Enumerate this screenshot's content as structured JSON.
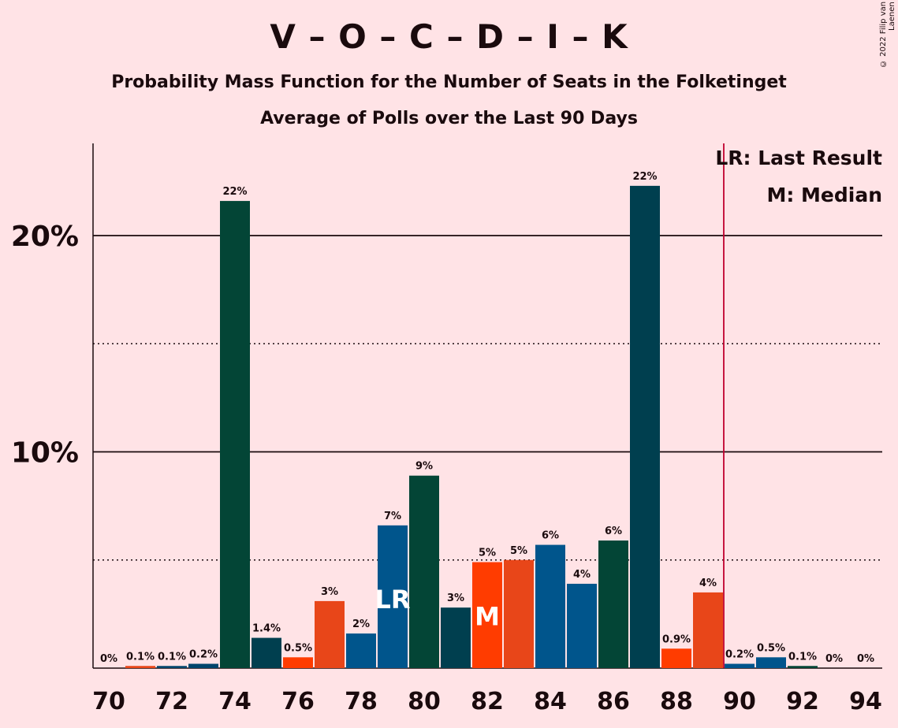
{
  "title": "V – O – C – D – I – K",
  "subtitle": "Probability Mass Function for the Number of Seats in the Folketinget",
  "subtitle2": "Average of Polls over the Last 90 Days",
  "copyright": "© 2022 Filip van Laenen",
  "legend": {
    "lr": "LR: Last Result",
    "m": "M: Median"
  },
  "chart_data": {
    "type": "bar",
    "categories": [
      70,
      71,
      72,
      73,
      74,
      75,
      76,
      77,
      78,
      79,
      80,
      81,
      82,
      83,
      84,
      85,
      86,
      87,
      88,
      89,
      90,
      91,
      92,
      93,
      94
    ],
    "values": [
      0,
      0.1,
      0.1,
      0.2,
      21.6,
      1.4,
      0.5,
      3.1,
      1.6,
      6.6,
      8.9,
      2.8,
      4.9,
      5,
      5.7,
      3.9,
      5.9,
      22.3,
      0.9,
      3.5,
      0.2,
      0.5,
      0.1,
      0,
      0
    ],
    "labels": [
      "0%",
      "0.1%",
      "0.1%",
      "0.2%",
      "22%",
      "1.4%",
      "0.5%",
      "3%",
      "2%",
      "7%",
      "9%",
      "3%",
      "5%",
      "5%",
      "6%",
      "4%",
      "6%",
      "22%",
      "0.9%",
      "4%",
      "0.2%",
      "0.5%",
      "0.1%",
      "0%",
      "0%"
    ],
    "colors": [
      "#00456B",
      "#E84619",
      "#00456B",
      "#00456B",
      "#034536",
      "#003F4F",
      "#FF3C00",
      "#E84619",
      "#00558C",
      "#00558C",
      "#034536",
      "#003F4F",
      "#FF3C00",
      "#E84619",
      "#00558C",
      "#00558C",
      "#034536",
      "#003F4F",
      "#FF3C00",
      "#E84619",
      "#00558C",
      "#00558C",
      "#034536",
      "#003F4F",
      "#FF3C00"
    ],
    "x_tick_labels": [
      "70",
      "72",
      "74",
      "76",
      "78",
      "80",
      "82",
      "84",
      "86",
      "88",
      "90",
      "92",
      "94"
    ],
    "y_tick_labels": [
      "10%",
      "20%"
    ],
    "ylim": [
      0,
      24
    ],
    "last_result": 79,
    "median": 82,
    "majority_line": 89.5,
    "lr_marker": "LR",
    "median_marker": "M"
  }
}
